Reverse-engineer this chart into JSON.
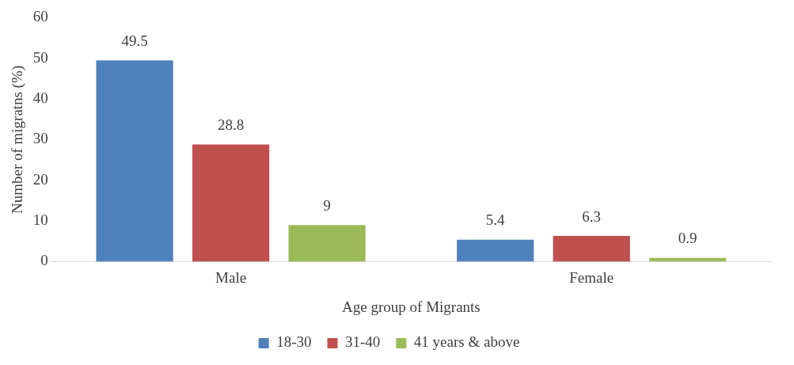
{
  "chart_data": {
    "type": "bar",
    "xlabel": "Age group of Migrants",
    "ylabel": "Number of migratns (%)",
    "categories": [
      "Male",
      "Female"
    ],
    "series": [
      {
        "name": "18-30",
        "color": "#4f81bd",
        "values": [
          49.5,
          5.4
        ]
      },
      {
        "name": "31-40",
        "color": "#c0504d",
        "values": [
          28.8,
          6.3
        ]
      },
      {
        "name": "41 years & above",
        "color": "#9bbb59",
        "values": [
          9,
          0.9
        ]
      }
    ],
    "ylim": [
      0,
      60
    ],
    "yticks": [
      0,
      10,
      20,
      30,
      40,
      50,
      60
    ],
    "grid": false,
    "legend": "bottom",
    "data_labels": true
  }
}
